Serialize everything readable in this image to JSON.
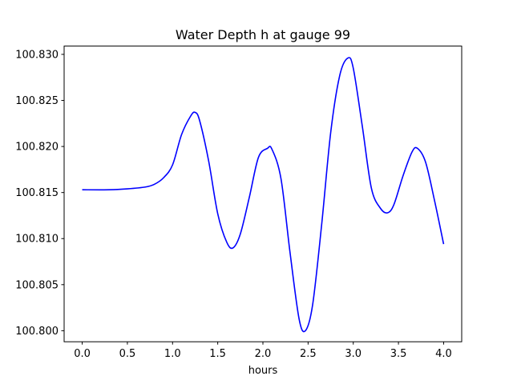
{
  "chart_data": {
    "type": "line",
    "title": "Water Depth h at gauge 99",
    "xlabel": "hours",
    "ylabel": "",
    "xlim": [
      -0.2,
      4.2
    ],
    "ylim": [
      100.7988,
      100.8309
    ],
    "grid": false,
    "x_ticks": [
      0.0,
      0.5,
      1.0,
      1.5,
      2.0,
      2.5,
      3.0,
      3.5,
      4.0
    ],
    "x_tick_labels": [
      "0.0",
      "0.5",
      "1.0",
      "1.5",
      "2.0",
      "2.5",
      "3.0",
      "3.5",
      "4.0"
    ],
    "y_ticks": [
      100.8,
      100.805,
      100.81,
      100.815,
      100.82,
      100.825,
      100.83
    ],
    "y_tick_labels": [
      "100.800",
      "100.805",
      "100.810",
      "100.815",
      "100.820",
      "100.825",
      "100.830"
    ],
    "series": [
      {
        "color": "#0000ff",
        "x": [
          0.0,
          0.3,
          0.5,
          0.7,
          0.8,
          0.9,
          1.0,
          1.1,
          1.2,
          1.25,
          1.3,
          1.4,
          1.5,
          1.6,
          1.67,
          1.75,
          1.85,
          1.95,
          2.05,
          2.1,
          2.2,
          2.3,
          2.4,
          2.47,
          2.55,
          2.65,
          2.75,
          2.85,
          2.94,
          3.0,
          3.1,
          3.2,
          3.3,
          3.38,
          3.45,
          3.55,
          3.65,
          3.71,
          3.8,
          3.9,
          4.0
        ],
        "y": [
          100.8153,
          100.8153,
          100.8154,
          100.8156,
          100.8159,
          100.8166,
          100.818,
          100.8213,
          100.8233,
          100.8237,
          100.8228,
          100.8184,
          100.8127,
          100.8096,
          100.809,
          100.8105,
          100.8145,
          100.8188,
          100.8198,
          100.8197,
          100.8165,
          100.8085,
          100.8013,
          100.8,
          100.8028,
          100.8115,
          100.8215,
          100.8277,
          100.8296,
          100.8285,
          100.8222,
          100.8155,
          100.8133,
          100.8128,
          100.8137,
          100.8168,
          100.8194,
          100.8198,
          100.8183,
          100.8141,
          100.8094
        ]
      }
    ]
  }
}
